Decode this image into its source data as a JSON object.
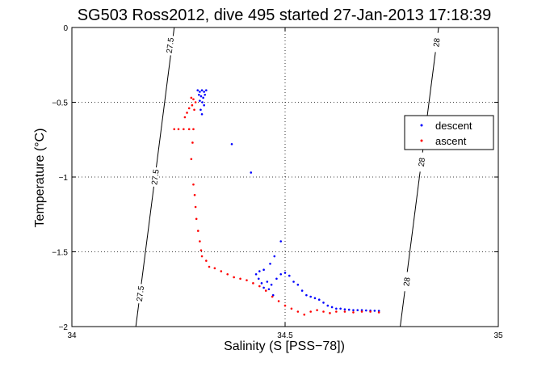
{
  "chart_data": {
    "type": "scatter",
    "title": "SG503 Ross2012, dive 495 started 27-Jan-2013 17:18:39",
    "xlabel": "Salinity (S [PSS−78])",
    "ylabel": "Temperature (°C)",
    "xlim": [
      34,
      35
    ],
    "ylim": [
      -2,
      0
    ],
    "xticks": [
      34,
      34.5,
      35
    ],
    "yticks": [
      -2,
      -1.5,
      -1,
      -0.5,
      0
    ],
    "xtick_labels": [
      "34",
      "34.5",
      "35"
    ],
    "ytick_labels": [
      "−2",
      "−1.5",
      "−1",
      "−0.5",
      "0"
    ],
    "grid": true,
    "legend_position": "right",
    "series": [
      {
        "name": "descent",
        "color": "#0000ff",
        "marker": "dot",
        "points": [
          [
            34.295,
            -0.42
          ],
          [
            34.3,
            -0.43
          ],
          [
            34.305,
            -0.42
          ],
          [
            34.31,
            -0.43
          ],
          [
            34.315,
            -0.42
          ],
          [
            34.298,
            -0.45
          ],
          [
            34.303,
            -0.46
          ],
          [
            34.308,
            -0.47
          ],
          [
            34.312,
            -0.45
          ],
          [
            34.3,
            -0.49
          ],
          [
            34.306,
            -0.5
          ],
          [
            34.31,
            -0.52
          ],
          [
            34.302,
            -0.55
          ],
          [
            34.305,
            -0.58
          ],
          [
            34.375,
            -0.78
          ],
          [
            34.42,
            -0.97
          ],
          [
            34.49,
            -1.43
          ],
          [
            34.475,
            -1.53
          ],
          [
            34.465,
            -1.58
          ],
          [
            34.45,
            -1.62
          ],
          [
            34.44,
            -1.63
          ],
          [
            34.432,
            -1.65
          ],
          [
            34.438,
            -1.68
          ],
          [
            34.445,
            -1.71
          ],
          [
            34.45,
            -1.74
          ],
          [
            34.458,
            -1.7
          ],
          [
            34.462,
            -1.75
          ],
          [
            34.468,
            -1.72
          ],
          [
            34.472,
            -1.79
          ],
          [
            34.48,
            -1.68
          ],
          [
            34.49,
            -1.65
          ],
          [
            34.5,
            -1.64
          ],
          [
            34.51,
            -1.66
          ],
          [
            34.52,
            -1.7
          ],
          [
            34.53,
            -1.72
          ],
          [
            34.54,
            -1.76
          ],
          [
            34.55,
            -1.79
          ],
          [
            34.56,
            -1.8
          ],
          [
            34.57,
            -1.81
          ],
          [
            34.58,
            -1.82
          ],
          [
            34.59,
            -1.84
          ],
          [
            34.6,
            -1.86
          ],
          [
            34.61,
            -1.87
          ],
          [
            34.62,
            -1.88
          ],
          [
            34.63,
            -1.88
          ],
          [
            34.64,
            -1.885
          ],
          [
            34.65,
            -1.887
          ],
          [
            34.66,
            -1.89
          ],
          [
            34.67,
            -1.89
          ],
          [
            34.68,
            -1.89
          ],
          [
            34.69,
            -1.892
          ],
          [
            34.7,
            -1.893
          ],
          [
            34.71,
            -1.894
          ],
          [
            34.72,
            -1.895
          ]
        ]
      },
      {
        "name": "ascent",
        "color": "#ff0000",
        "marker": "dot",
        "points": [
          [
            34.28,
            -0.47
          ],
          [
            34.285,
            -0.48
          ],
          [
            34.29,
            -0.5
          ],
          [
            34.282,
            -0.52
          ],
          [
            34.287,
            -0.55
          ],
          [
            34.275,
            -0.54
          ],
          [
            34.27,
            -0.57
          ],
          [
            34.265,
            -0.6
          ],
          [
            34.24,
            -0.68
          ],
          [
            34.25,
            -0.68
          ],
          [
            34.262,
            -0.68
          ],
          [
            34.275,
            -0.68
          ],
          [
            34.285,
            -0.68
          ],
          [
            34.283,
            -0.77
          ],
          [
            34.28,
            -0.88
          ],
          [
            34.285,
            -1.05
          ],
          [
            34.288,
            -1.12
          ],
          [
            34.29,
            -1.2
          ],
          [
            34.292,
            -1.28
          ],
          [
            34.296,
            -1.36
          ],
          [
            34.3,
            -1.43
          ],
          [
            34.303,
            -1.49
          ],
          [
            34.305,
            -1.53
          ],
          [
            34.315,
            -1.56
          ],
          [
            34.322,
            -1.6
          ],
          [
            34.335,
            -1.61
          ],
          [
            34.35,
            -1.63
          ],
          [
            34.365,
            -1.65
          ],
          [
            34.38,
            -1.67
          ],
          [
            34.395,
            -1.68
          ],
          [
            34.41,
            -1.69
          ],
          [
            34.425,
            -1.71
          ],
          [
            34.44,
            -1.73
          ],
          [
            34.455,
            -1.76
          ],
          [
            34.47,
            -1.8
          ],
          [
            34.485,
            -1.83
          ],
          [
            34.5,
            -1.86
          ],
          [
            34.515,
            -1.88
          ],
          [
            34.53,
            -1.9
          ],
          [
            34.545,
            -1.92
          ],
          [
            34.56,
            -1.9
          ],
          [
            34.575,
            -1.89
          ],
          [
            34.59,
            -1.9
          ],
          [
            34.605,
            -1.91
          ],
          [
            34.62,
            -1.9
          ],
          [
            34.64,
            -1.9
          ],
          [
            34.66,
            -1.905
          ],
          [
            34.68,
            -1.9
          ],
          [
            34.7,
            -1.9
          ],
          [
            34.72,
            -1.905
          ]
        ]
      }
    ],
    "isopycnals": [
      {
        "label": "27.5",
        "points": [
          [
            34.15,
            -2.0
          ],
          [
            34.24,
            0.0
          ]
        ]
      },
      {
        "label": "28",
        "points": [
          [
            34.77,
            -2.0
          ],
          [
            34.86,
            0.0
          ]
        ]
      }
    ],
    "isopycnal_labels": [
      {
        "text": "27.5",
        "at": [
          34.23,
          -0.12
        ]
      },
      {
        "text": "27.5",
        "at": [
          34.195,
          -1.0
        ]
      },
      {
        "text": "27.5",
        "at": [
          34.16,
          -1.78
        ]
      },
      {
        "text": "28",
        "at": [
          34.855,
          -0.1
        ]
      },
      {
        "text": "28",
        "at": [
          34.82,
          -0.9
        ]
      },
      {
        "text": "28",
        "at": [
          34.785,
          -1.7
        ]
      }
    ]
  }
}
